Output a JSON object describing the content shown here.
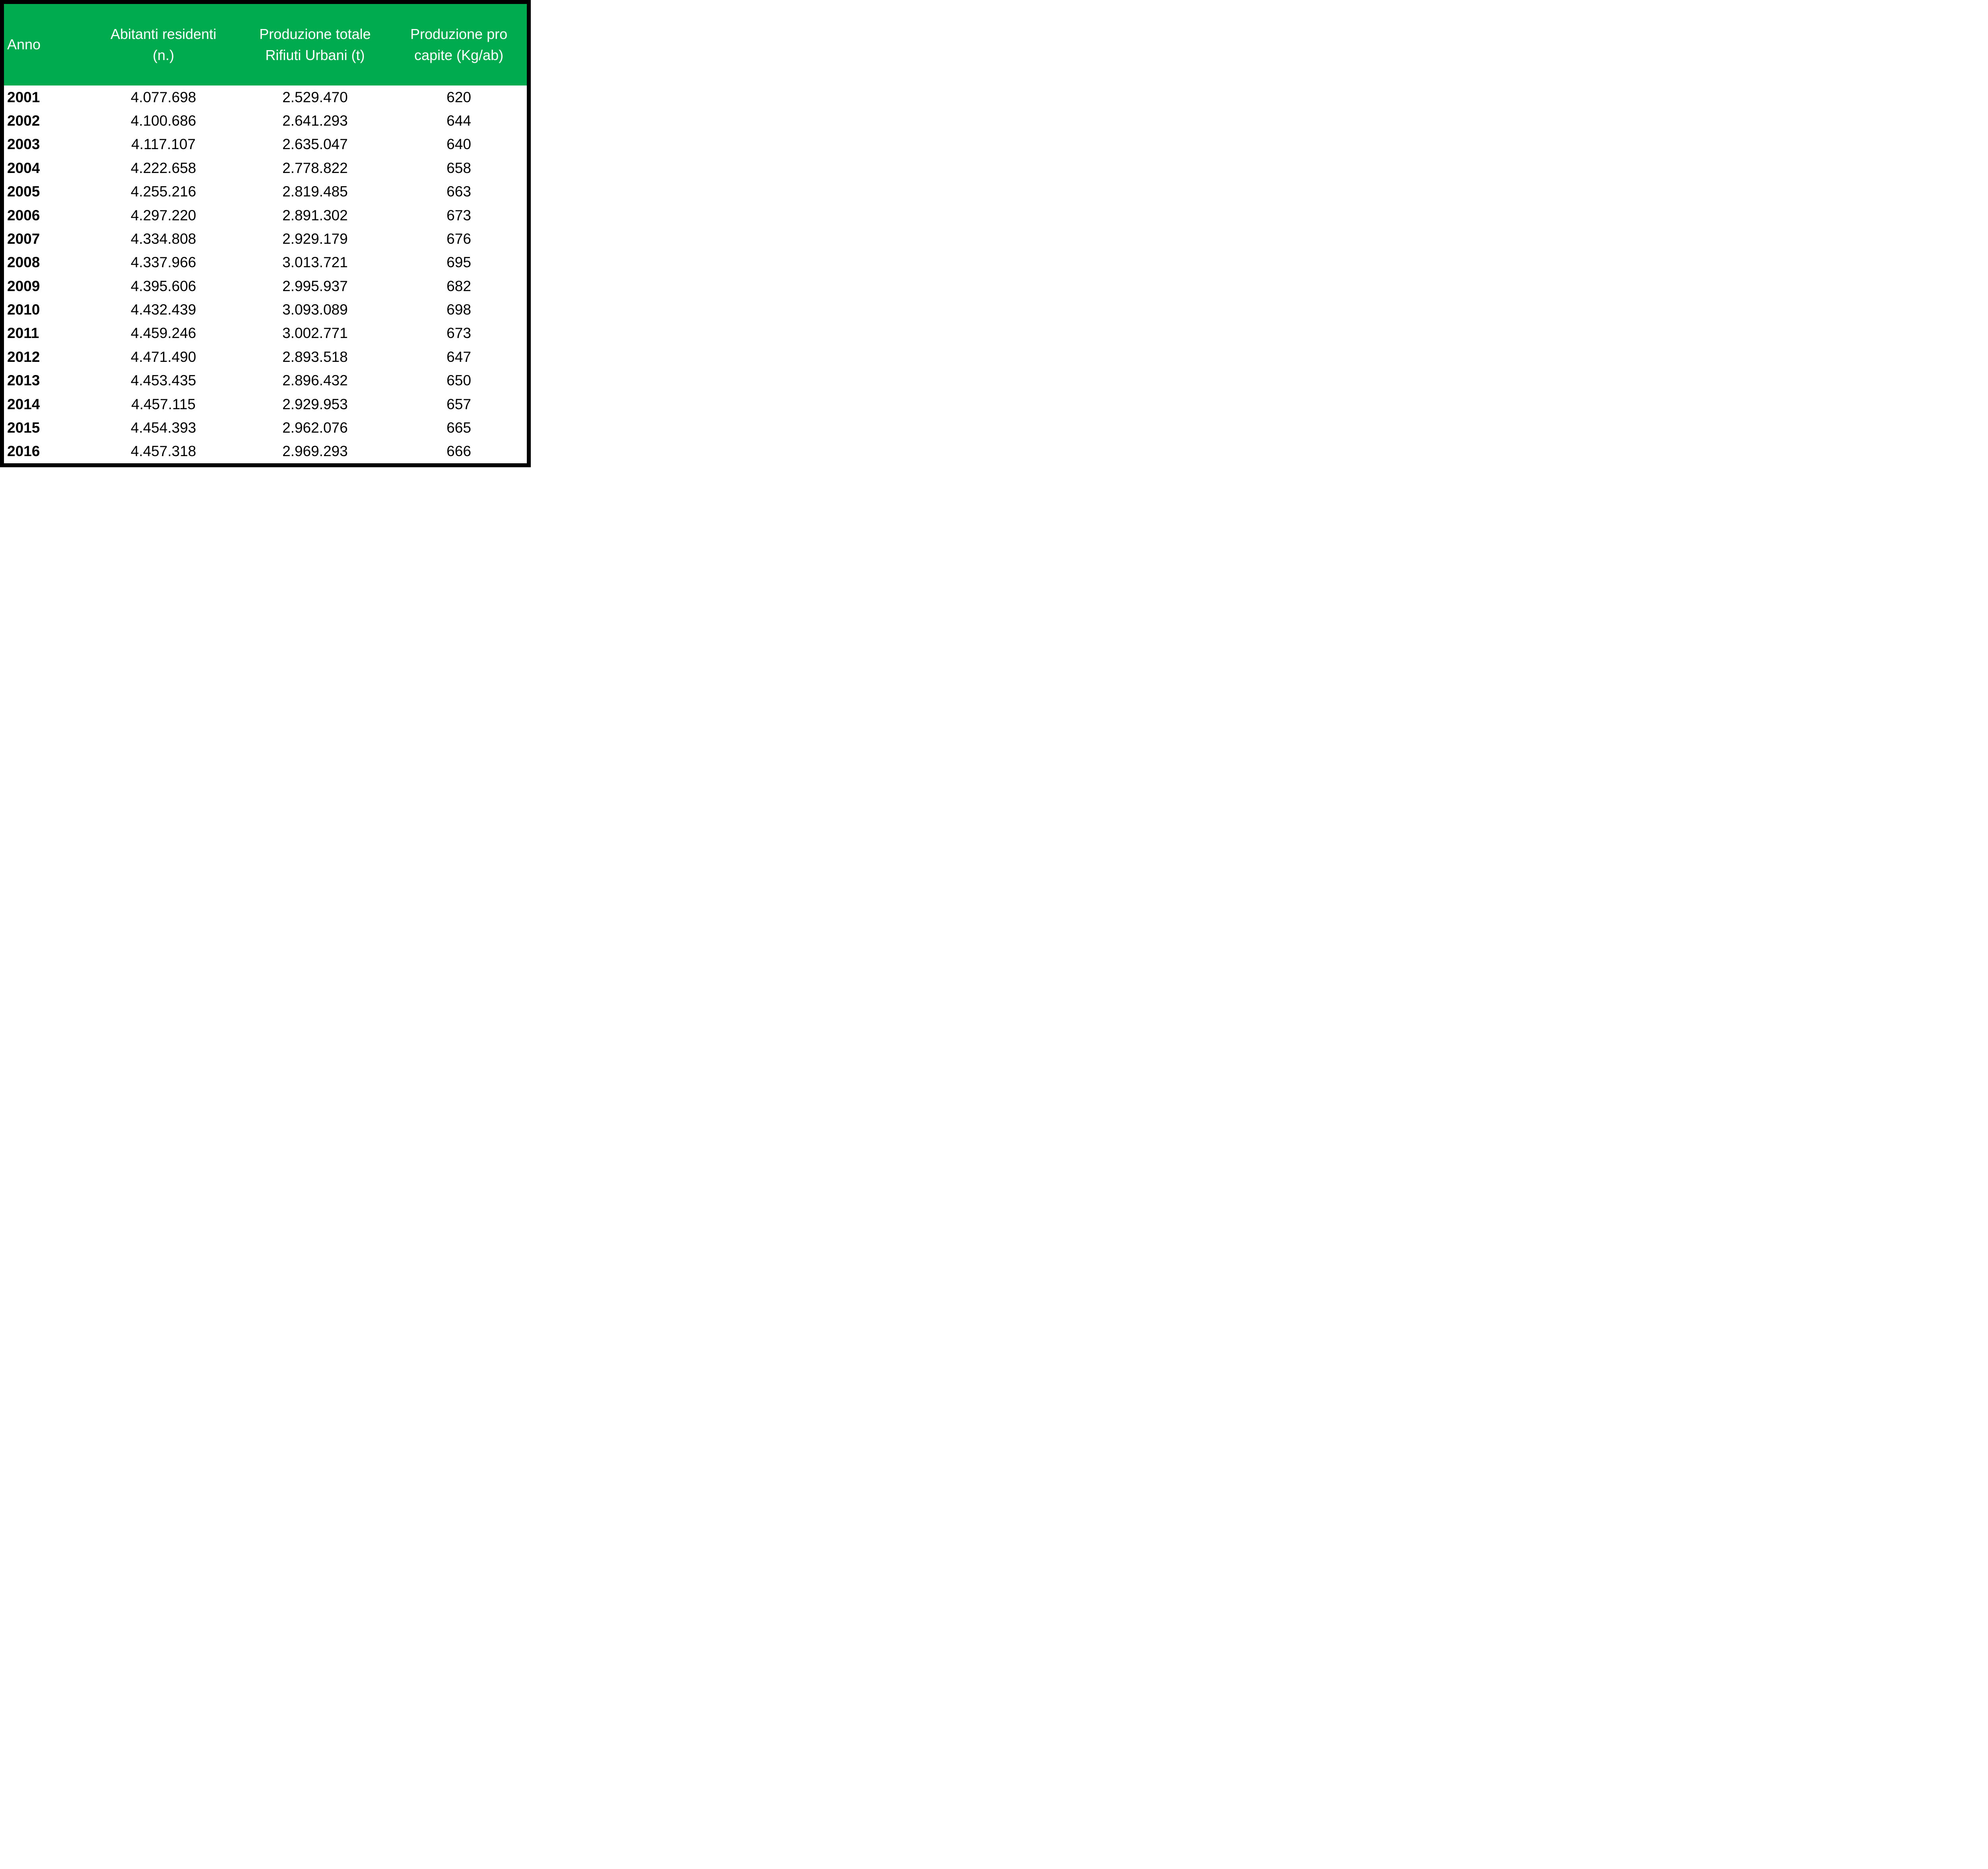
{
  "colors": {
    "header_bg": "#00ab50",
    "header_text": "#ffffff",
    "border": "#000000",
    "row_bg": "#ffffff",
    "row_text": "#000000"
  },
  "header": {
    "anno": {
      "label": "Anno"
    },
    "abitanti": {
      "line1": "Abitanti residenti",
      "line2": "(n.)"
    },
    "produzione_totale": {
      "line1": "Produzione totale",
      "line2": "Rifiuti Urbani (t)"
    },
    "pro_capite": {
      "line1": "Produzione pro",
      "line2": "capite (Kg/ab)"
    }
  },
  "rows": [
    {
      "anno": "2001",
      "abitanti_residenti": "4.077.698",
      "produzione_totale": "2.529.470",
      "pro_capite": "620"
    },
    {
      "anno": "2002",
      "abitanti_residenti": "4.100.686",
      "produzione_totale": "2.641.293",
      "pro_capite": "644"
    },
    {
      "anno": "2003",
      "abitanti_residenti": "4.117.107",
      "produzione_totale": "2.635.047",
      "pro_capite": "640"
    },
    {
      "anno": "2004",
      "abitanti_residenti": "4.222.658",
      "produzione_totale": "2.778.822",
      "pro_capite": "658"
    },
    {
      "anno": "2005",
      "abitanti_residenti": "4.255.216",
      "produzione_totale": "2.819.485",
      "pro_capite": "663"
    },
    {
      "anno": "2006",
      "abitanti_residenti": "4.297.220",
      "produzione_totale": "2.891.302",
      "pro_capite": "673"
    },
    {
      "anno": "2007",
      "abitanti_residenti": "4.334.808",
      "produzione_totale": "2.929.179",
      "pro_capite": "676"
    },
    {
      "anno": "2008",
      "abitanti_residenti": "4.337.966",
      "produzione_totale": "3.013.721",
      "pro_capite": "695"
    },
    {
      "anno": "2009",
      "abitanti_residenti": "4.395.606",
      "produzione_totale": "2.995.937",
      "pro_capite": "682"
    },
    {
      "anno": "2010",
      "abitanti_residenti": "4.432.439",
      "produzione_totale": "3.093.089",
      "pro_capite": "698"
    },
    {
      "anno": "2011",
      "abitanti_residenti": "4.459.246",
      "produzione_totale": "3.002.771",
      "pro_capite": "673"
    },
    {
      "anno": "2012",
      "abitanti_residenti": "4.471.490",
      "produzione_totale": "2.893.518",
      "pro_capite": "647"
    },
    {
      "anno": "2013",
      "abitanti_residenti": "4.453.435",
      "produzione_totale": "2.896.432",
      "pro_capite": "650"
    },
    {
      "anno": "2014",
      "abitanti_residenti": "4.457.115",
      "produzione_totale": "2.929.953",
      "pro_capite": "657"
    },
    {
      "anno": "2015",
      "abitanti_residenti": "4.454.393",
      "produzione_totale": "2.962.076",
      "pro_capite": "665"
    },
    {
      "anno": "2016",
      "abitanti_residenti": "4.457.318",
      "produzione_totale": "2.969.293",
      "pro_capite": "666"
    }
  ],
  "chart_data": {
    "type": "table",
    "title": "",
    "columns": [
      "Anno",
      "Abitanti residenti (n.)",
      "Produzione totale Rifiuti Urbani (t)",
      "Produzione pro capite (Kg/ab)"
    ],
    "rows": [
      [
        2001,
        4077698,
        2529470,
        620
      ],
      [
        2002,
        4100686,
        2641293,
        644
      ],
      [
        2003,
        4117107,
        2635047,
        640
      ],
      [
        2004,
        4222658,
        2778822,
        658
      ],
      [
        2005,
        4255216,
        2819485,
        663
      ],
      [
        2006,
        4297220,
        2891302,
        673
      ],
      [
        2007,
        4334808,
        2929179,
        676
      ],
      [
        2008,
        4337966,
        3013721,
        695
      ],
      [
        2009,
        4395606,
        2995937,
        682
      ],
      [
        2010,
        4432439,
        3093089,
        698
      ],
      [
        2011,
        4459246,
        3002771,
        673
      ],
      [
        2012,
        4471490,
        2893518,
        647
      ],
      [
        2013,
        4453435,
        2896432,
        650
      ],
      [
        2014,
        4457115,
        2929953,
        657
      ],
      [
        2015,
        4454393,
        2962076,
        665
      ],
      [
        2016,
        4457318,
        2969293,
        666
      ]
    ],
    "number_format": "it-IT thousands separator '.'",
    "header_style": {
      "background": "#00ab50",
      "text_color": "#ffffff"
    },
    "grid": false
  }
}
